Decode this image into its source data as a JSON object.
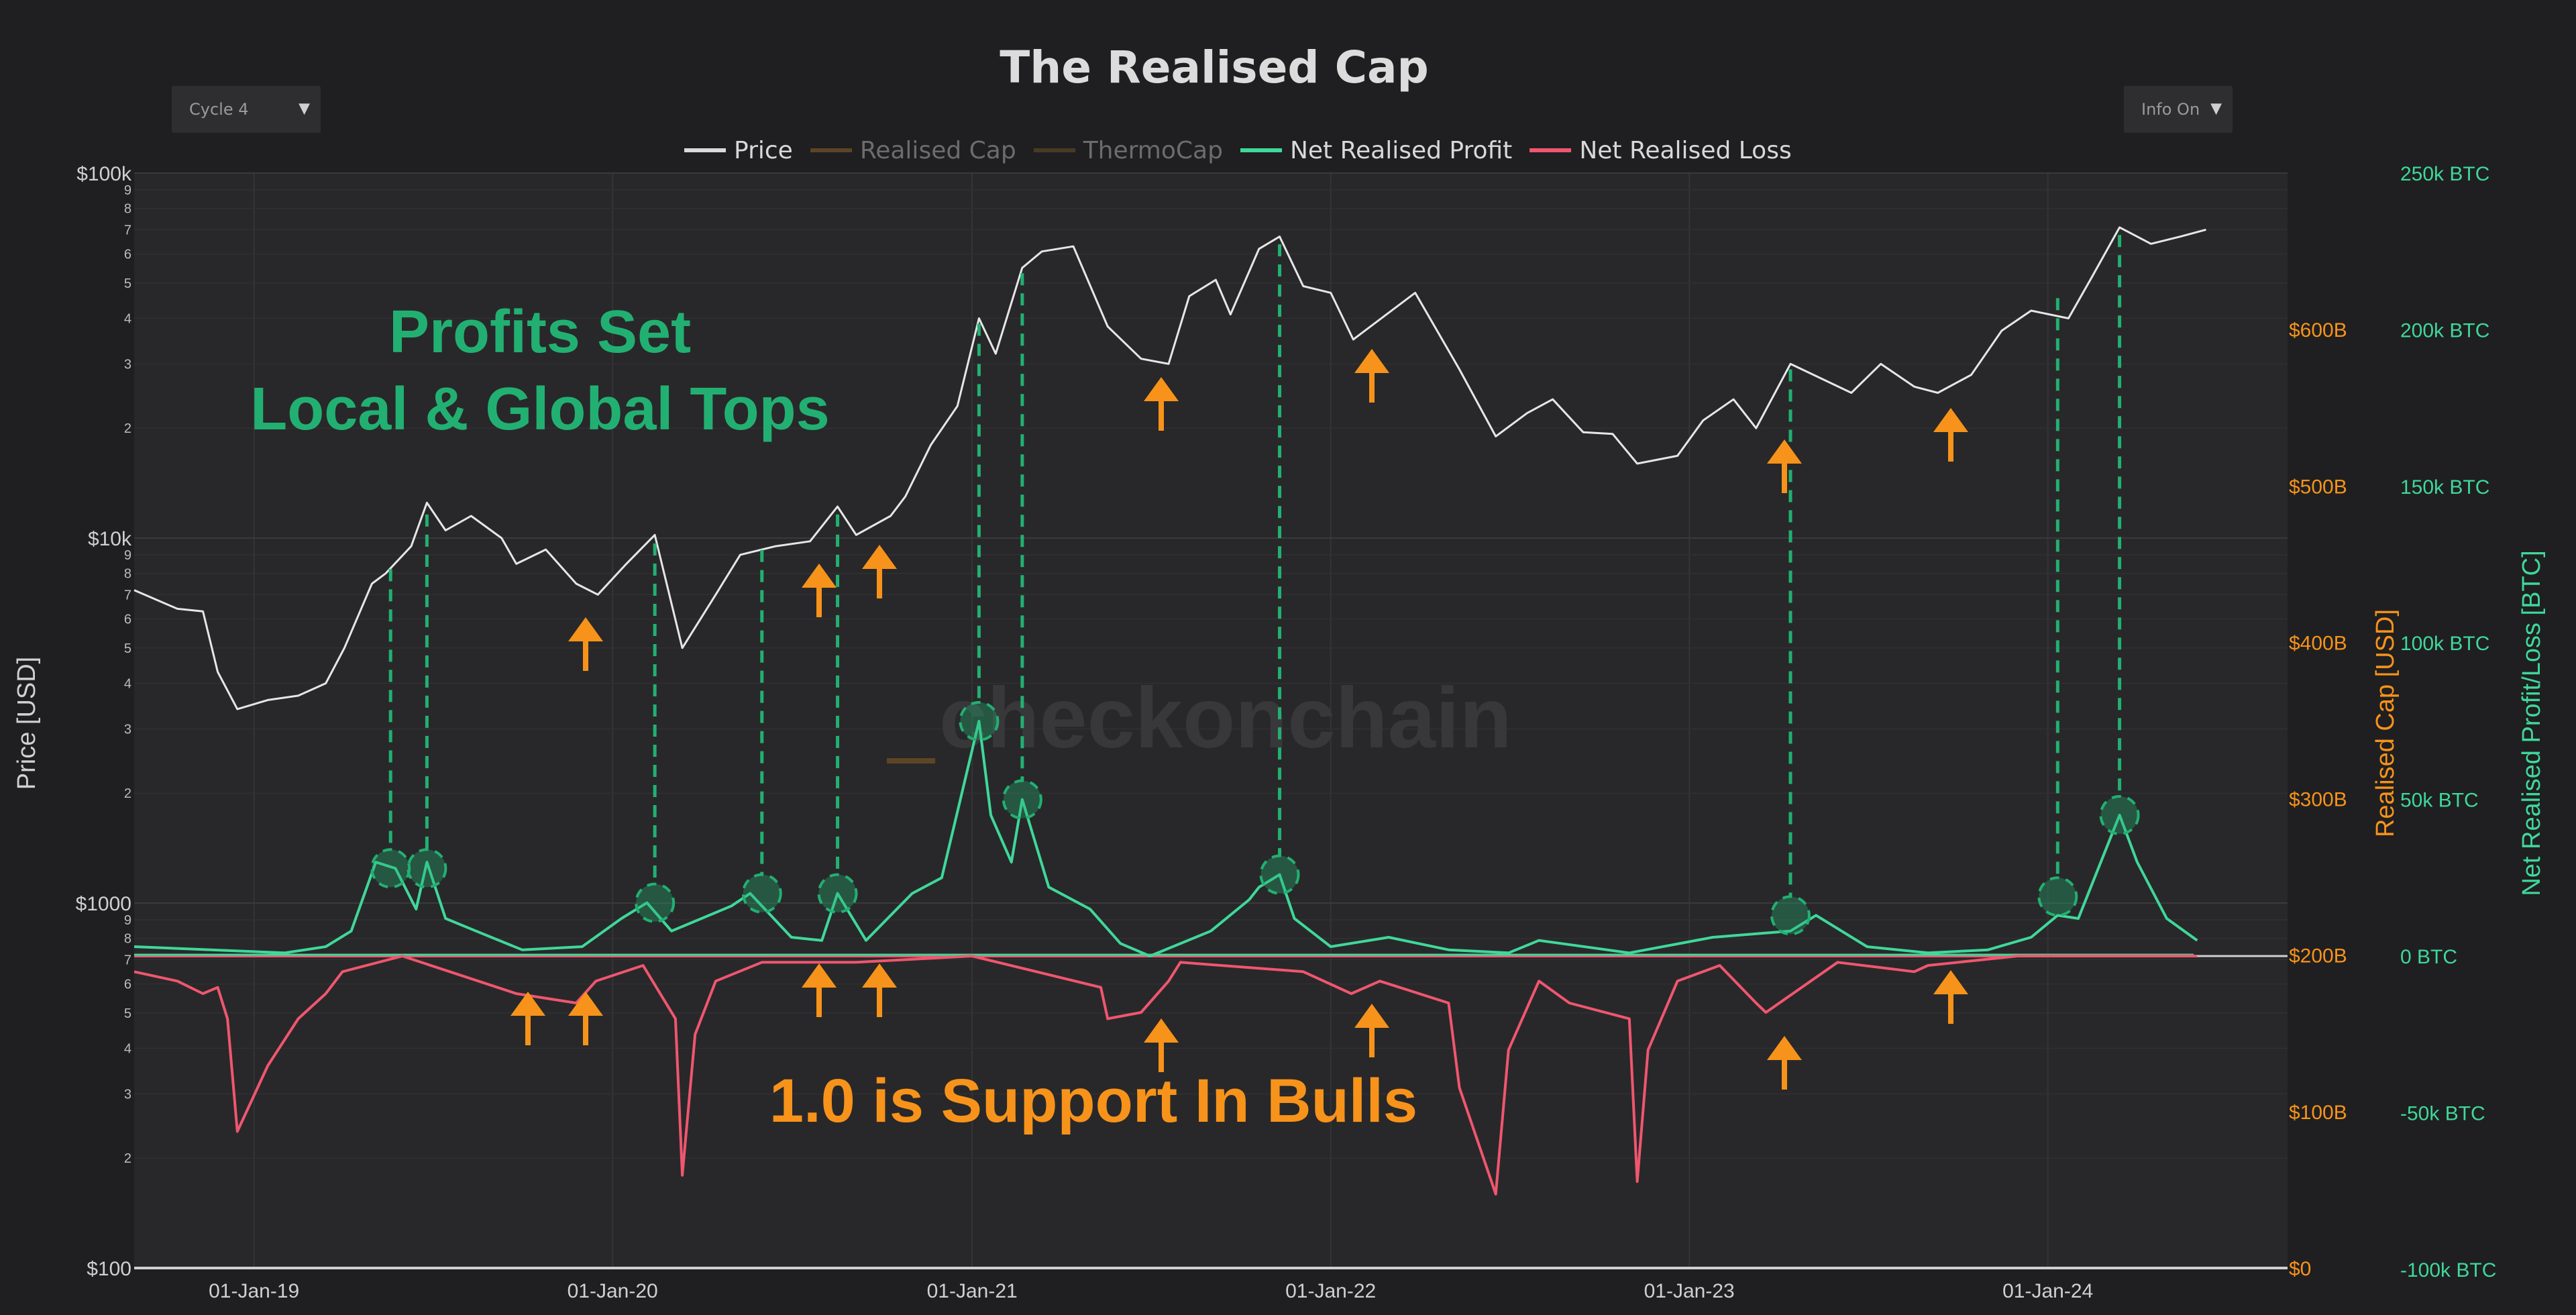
{
  "title": "The Realised Cap",
  "controls": {
    "cycle_select": "Cycle 4",
    "info_select": "Info On"
  },
  "colors": {
    "background": "#1f1f21",
    "plot_background": "#28282a",
    "price": "#e6e6e6",
    "realised_cap": "#7a5a2a",
    "thermocap": "#5a4526",
    "profit": "#3fd89a",
    "loss": "#f0566f",
    "annotation_green": "#22b072",
    "annotation_orange": "#f7931a"
  },
  "legend": [
    {
      "label": "Price",
      "color": "#d9d9d9",
      "active": true
    },
    {
      "label": "Realised Cap",
      "color": "#5b4526",
      "active": false
    },
    {
      "label": "ThermoCap",
      "color": "#4a3a24",
      "active": false
    },
    {
      "label": "Net Realised Profit",
      "color": "#3fd89a",
      "active": true
    },
    {
      "label": "Net Realised Loss",
      "color": "#f0566f",
      "active": true
    }
  ],
  "annotations": {
    "profits_line1": "Profits Set",
    "profits_line2": "Local & Global Tops",
    "support": "1.0 is Support In Bulls",
    "watermark": "checkonchain"
  },
  "chart_data": {
    "type": "line",
    "title": "The Realised Cap",
    "x_tick_labels": [
      "01-Jan-19",
      "01-Jan-20",
      "01-Jan-21",
      "01-Jan-22",
      "01-Jan-23",
      "01-Jan-24"
    ],
    "xlim": [
      "2018-09-01",
      "2024-09-01"
    ],
    "left_axis": {
      "label": "Price [USD]",
      "scale": "log",
      "range": [
        100,
        100000
      ],
      "tick_labels": [
        "$100",
        "$1000",
        "$10k",
        "$100k"
      ]
    },
    "right_axis_1": {
      "label": "Realised Cap [USD]",
      "range": [
        0,
        700
      ],
      "tick_labels": [
        "$0",
        "$100B",
        "$200B",
        "$300B",
        "$400B",
        "$500B",
        "$600B"
      ]
    },
    "right_axis_2": {
      "label": "Net Realised Profit/Loss [BTC]",
      "range": [
        -100000,
        250000
      ],
      "tick_labels": [
        "-100k BTC",
        "-50k BTC",
        "0 BTC",
        "50k BTC",
        "100k BTC",
        "150k BTC",
        "200k BTC",
        "250k BTC"
      ]
    },
    "grid": true,
    "legend_position": "top-center",
    "series": [
      {
        "name": "Price",
        "axis": "left",
        "x": [
          "2018-09-01",
          "2018-10-15",
          "2018-11-10",
          "2018-11-25",
          "2018-12-15",
          "2019-01-15",
          "2019-02-15",
          "2019-03-15",
          "2019-04-03",
          "2019-05-01",
          "2019-05-15",
          "2019-06-10",
          "2019-06-26",
          "2019-07-15",
          "2019-08-10",
          "2019-09-10",
          "2019-09-25",
          "2019-10-25",
          "2019-11-25",
          "2019-12-17",
          "2020-01-15",
          "2020-02-13",
          "2020-03-12",
          "2020-04-15",
          "2020-05-10",
          "2020-06-15",
          "2020-07-20",
          "2020-08-17",
          "2020-09-05",
          "2020-10-10",
          "2020-10-25",
          "2020-11-20",
          "2020-12-17",
          "2021-01-08",
          "2021-01-25",
          "2021-02-21",
          "2021-03-13",
          "2021-04-14",
          "2021-05-19",
          "2021-06-22",
          "2021-07-20",
          "2021-08-10",
          "2021-09-06",
          "2021-09-21",
          "2021-10-20",
          "2021-11-10",
          "2021-12-04",
          "2022-01-01",
          "2022-01-24",
          "2022-03-28",
          "2022-05-12",
          "2022-06-18",
          "2022-07-20",
          "2022-08-15",
          "2022-09-15",
          "2022-10-15",
          "2022-11-09",
          "2022-12-20",
          "2023-01-15",
          "2023-02-15",
          "2023-03-10",
          "2023-04-14",
          "2023-06-15",
          "2023-07-15",
          "2023-08-18",
          "2023-09-11",
          "2023-10-15",
          "2023-11-15",
          "2023-12-15",
          "2024-01-22",
          "2024-02-15",
          "2024-03-14",
          "2024-04-15",
          "2024-05-15",
          "2024-06-10"
        ],
        "values": [
          7200,
          6400,
          6300,
          4300,
          3400,
          3600,
          3700,
          4000,
          5000,
          7500,
          8000,
          9500,
          12500,
          10500,
          11500,
          10000,
          8500,
          9300,
          7500,
          7000,
          8500,
          10200,
          5000,
          7000,
          9000,
          9500,
          9800,
          12200,
          10200,
          11500,
          13000,
          18000,
          23000,
          40000,
          32000,
          55000,
          61000,
          63000,
          38000,
          31000,
          30000,
          46000,
          51000,
          41000,
          62000,
          67000,
          49000,
          47000,
          35000,
          47000,
          29000,
          19000,
          22000,
          24000,
          19500,
          19300,
          16000,
          16800,
          21000,
          24000,
          20000,
          30000,
          25000,
          30000,
          26000,
          25000,
          28000,
          37000,
          42000,
          40000,
          52000,
          71000,
          64000,
          67000,
          70000
        ]
      },
      {
        "name": "Net Realised Profit",
        "axis": "right_2",
        "x": [
          "2018-09-01",
          "2019-02-01",
          "2019-03-15",
          "2019-04-10",
          "2019-05-05",
          "2019-05-25",
          "2019-06-15",
          "2019-06-26",
          "2019-07-15",
          "2019-08-15",
          "2019-10-01",
          "2019-12-01",
          "2020-01-10",
          "2020-02-05",
          "2020-03-01",
          "2020-05-01",
          "2020-05-20",
          "2020-07-01",
          "2020-08-01",
          "2020-08-17",
          "2020-09-15",
          "2020-11-01",
          "2020-12-01",
          "2021-01-08",
          "2021-01-20",
          "2021-02-10",
          "2021-02-21",
          "2021-03-20",
          "2021-05-01",
          "2021-06-01",
          "2021-07-01",
          "2021-09-01",
          "2021-10-10",
          "2021-10-20",
          "2021-11-10",
          "2021-11-25",
          "2022-01-01",
          "2022-03-01",
          "2022-05-01",
          "2022-07-01",
          "2022-08-01",
          "2022-11-01",
          "2023-01-25",
          "2023-04-14",
          "2023-05-10",
          "2023-07-01",
          "2023-09-01",
          "2023-11-01",
          "2023-12-15",
          "2024-01-11",
          "2024-02-01",
          "2024-03-14",
          "2024-04-01",
          "2024-05-01",
          "2024-06-01"
        ],
        "values": [
          3000,
          1000,
          3000,
          8000,
          30000,
          28000,
          15000,
          30000,
          12000,
          8000,
          2000,
          3000,
          12000,
          17000,
          8000,
          16000,
          20000,
          6000,
          5000,
          20000,
          5000,
          20000,
          25000,
          75000,
          45000,
          30000,
          50000,
          22000,
          15000,
          4000,
          0,
          8000,
          18000,
          22000,
          26000,
          12000,
          3000,
          6000,
          2000,
          1000,
          5000,
          1000,
          6000,
          8000,
          13000,
          3000,
          1000,
          2000,
          6000,
          13000,
          12000,
          45000,
          30000,
          12000,
          5000
        ]
      },
      {
        "name": "Net Realised Loss",
        "axis": "right_2",
        "x": [
          "2018-09-01",
          "2018-10-15",
          "2018-11-10",
          "2018-11-25",
          "2018-12-05",
          "2018-12-15",
          "2019-01-15",
          "2019-02-15",
          "2019-03-15",
          "2019-04-01",
          "2019-06-01",
          "2019-09-25",
          "2019-11-25",
          "2019-12-15",
          "2020-02-01",
          "2020-03-05",
          "2020-03-12",
          "2020-03-25",
          "2020-04-15",
          "2020-06-01",
          "2020-09-05",
          "2021-01-01",
          "2021-05-12",
          "2021-05-19",
          "2021-06-22",
          "2021-07-20",
          "2021-08-01",
          "2021-12-04",
          "2022-01-22",
          "2022-02-20",
          "2022-05-01",
          "2022-05-12",
          "2022-06-18",
          "2022-07-01",
          "2022-08-01",
          "2022-09-01",
          "2022-11-01",
          "2022-11-09",
          "2022-11-20",
          "2022-12-20",
          "2023-02-01",
          "2023-03-10",
          "2023-03-20",
          "2023-06-01",
          "2023-08-18",
          "2023-09-01",
          "2023-12-01",
          "2024-06-01"
        ],
        "values": [
          -5000,
          -8000,
          -12000,
          -10000,
          -20000,
          -56000,
          -35000,
          -20000,
          -12000,
          -5000,
          0,
          -12000,
          -15000,
          -8000,
          -3000,
          -20000,
          -70000,
          -25000,
          -8000,
          -2000,
          -2000,
          0,
          -10000,
          -20000,
          -18000,
          -8000,
          -2000,
          -5000,
          -12000,
          -8000,
          -15000,
          -42000,
          -76000,
          -30000,
          -8000,
          -15000,
          -20000,
          -72000,
          -30000,
          -8000,
          -3000,
          -15000,
          -18000,
          -2000,
          -5000,
          -3000,
          0,
          0
        ]
      }
    ]
  }
}
